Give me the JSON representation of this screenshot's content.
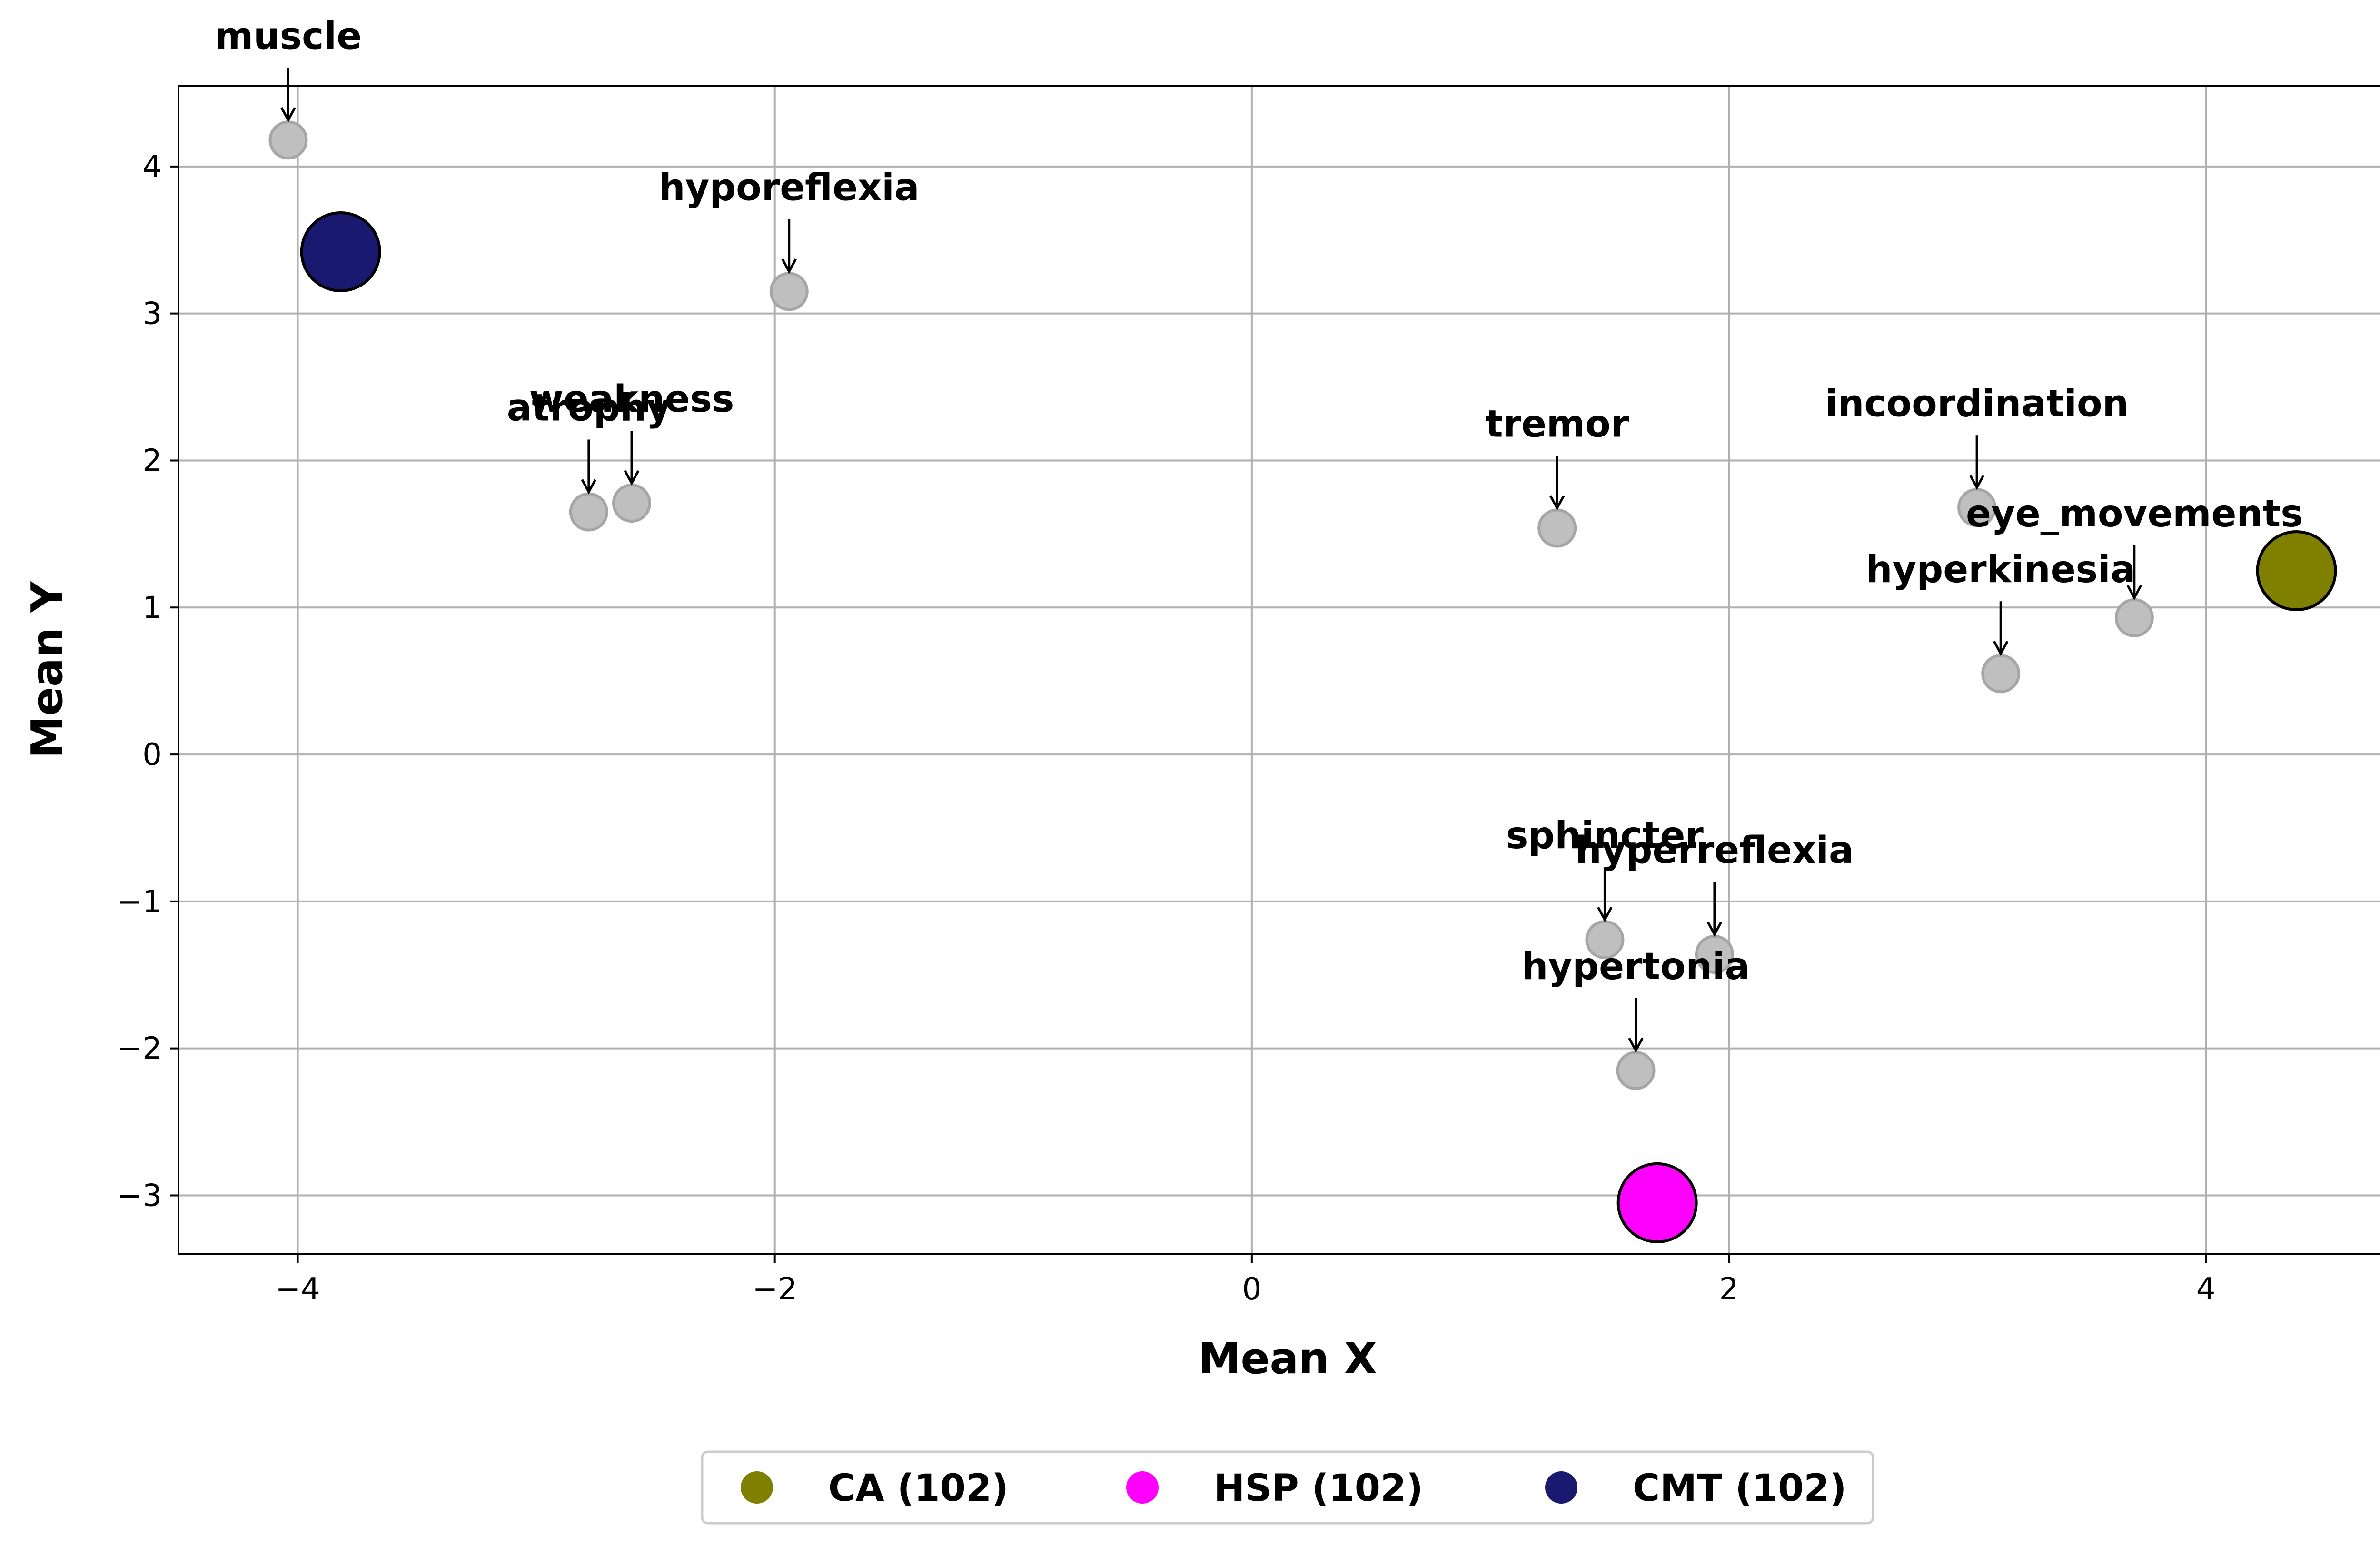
{
  "chart_data": {
    "type": "scatter",
    "xlabel": "Mean X",
    "ylabel": "Mean Y",
    "xlim": [
      -4.5,
      4.8
    ],
    "ylim": [
      -3.4,
      4.55
    ],
    "xticks": [
      -4,
      -2,
      0,
      2,
      4
    ],
    "yticks": [
      -3,
      -2,
      -1,
      0,
      1,
      2,
      3,
      4
    ],
    "xtick_labels": [
      "−4",
      "−2",
      "0",
      "2",
      "4"
    ],
    "ytick_labels": [
      "−3",
      "−2",
      "−1",
      "0",
      "1",
      "2",
      "3",
      "4"
    ],
    "grid": true,
    "legend_position": "bottom-center, outside plot",
    "groups": [
      {
        "name": "CA (102)",
        "x": 4.38,
        "y": 1.25,
        "color": "#808000"
      },
      {
        "name": "HSP (102)",
        "x": 1.7,
        "y": -3.05,
        "color": "#ff00ff"
      },
      {
        "name": "CMT (102)",
        "x": -3.82,
        "y": 3.42,
        "color": "#191970"
      }
    ],
    "features": [
      {
        "label": "muscle",
        "x": -4.04,
        "y": 4.18
      },
      {
        "label": "hyporeflexia",
        "x": -1.94,
        "y": 3.15
      },
      {
        "label": "atrophy",
        "x": -2.78,
        "y": 1.65
      },
      {
        "label": "weakness",
        "x": -2.6,
        "y": 1.71
      },
      {
        "label": "tremor",
        "x": 1.28,
        "y": 1.54
      },
      {
        "label": "incoordination",
        "x": 3.04,
        "y": 1.68
      },
      {
        "label": "eye_movements",
        "x": 3.7,
        "y": 0.93
      },
      {
        "label": "hyperkinesia",
        "x": 3.14,
        "y": 0.55
      },
      {
        "label": "sphincter",
        "x": 1.48,
        "y": -1.26
      },
      {
        "label": "hyperreflexia",
        "x": 1.94,
        "y": -1.36
      },
      {
        "label": "hypertonia",
        "x": 1.61,
        "y": -2.15
      }
    ],
    "feature_color": "#bfbfbf",
    "feature_edge_color": "#a6a6a6"
  }
}
